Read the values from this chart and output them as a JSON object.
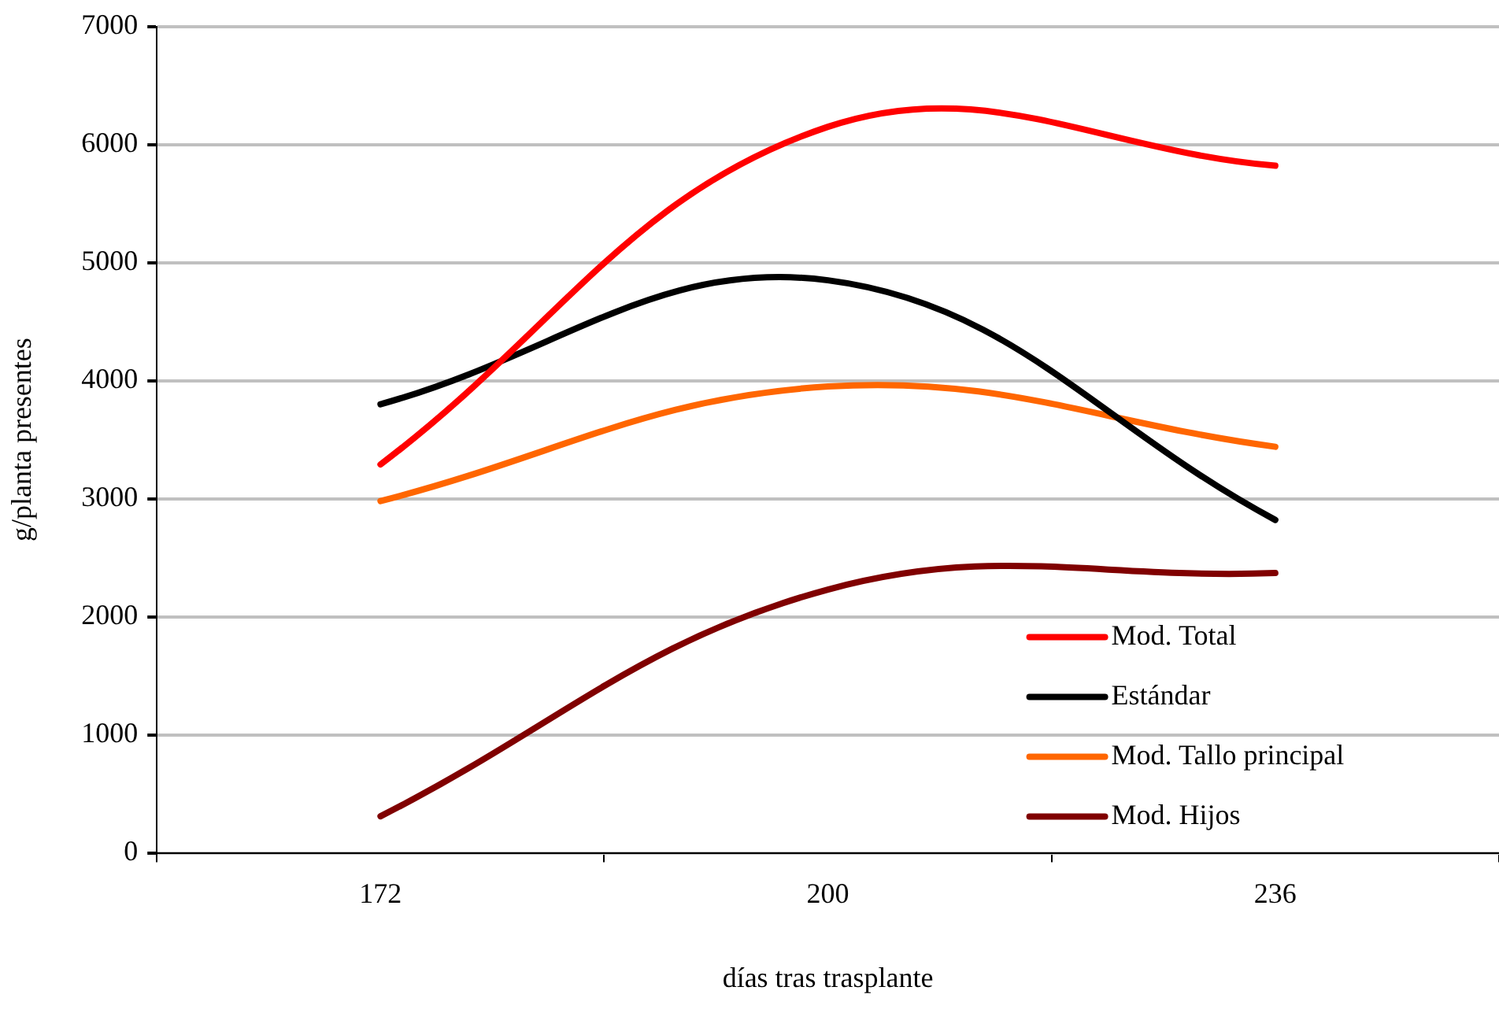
{
  "chart_data": {
    "type": "line",
    "xlabel": "días tras trasplante",
    "ylabel": "g/planta presentes",
    "categories": [
      "172",
      "200",
      "236"
    ],
    "series": [
      {
        "name": "Mod. Total",
        "color": "#ff0000",
        "values": [
          3290,
          6150,
          5820
        ]
      },
      {
        "name": "Estándar",
        "color": "#000000",
        "values": [
          3800,
          4850,
          2820
        ]
      },
      {
        "name": "Mod. Tallo principal",
        "color": "#ff6600",
        "values": [
          2980,
          3950,
          3440
        ]
      },
      {
        "name": "Mod. Hijos",
        "color": "#800000",
        "values": [
          310,
          2230,
          2370
        ]
      }
    ],
    "ylim": [
      0,
      7000
    ],
    "yticks": [
      0,
      1000,
      2000,
      3000,
      4000,
      5000,
      6000,
      7000
    ],
    "grid": "y",
    "legend": "bottom right",
    "marker": "none",
    "line_style": "solid"
  }
}
